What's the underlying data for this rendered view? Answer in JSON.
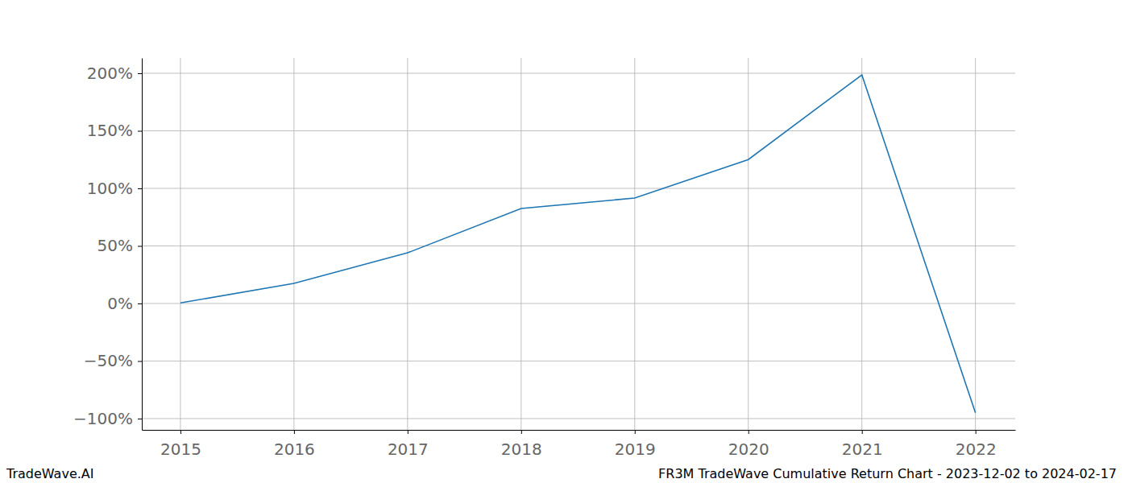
{
  "chart_data": {
    "type": "line",
    "title": "FR3M TradeWave Cumulative Return Chart - 2023-12-02 to 2024-02-17",
    "annotations": [
      "TradeWave.AI"
    ],
    "x": [
      2015,
      2016,
      2017,
      2018,
      2019,
      2020,
      2021,
      2022
    ],
    "values": [
      0.5,
      17.5,
      44,
      82.5,
      91.6,
      125,
      198.6,
      -95
    ],
    "color": "#1f77b4",
    "xlim": [
      2014.66,
      2022.35
    ],
    "xticks": [
      2015,
      2016,
      2017,
      2018,
      2019,
      2020,
      2021,
      2022
    ],
    "ylim": [
      -109.8,
      213.3
    ],
    "yticks": [
      {
        "value": -100,
        "label": "−100%"
      },
      {
        "value": -50,
        "label": "−50%"
      },
      {
        "value": 0,
        "label": "0%"
      },
      {
        "value": 50,
        "label": "50%"
      },
      {
        "value": 100,
        "label": "100%"
      },
      {
        "value": 150,
        "label": "150%"
      },
      {
        "value": 200,
        "label": "200%"
      }
    ],
    "grid": true
  }
}
